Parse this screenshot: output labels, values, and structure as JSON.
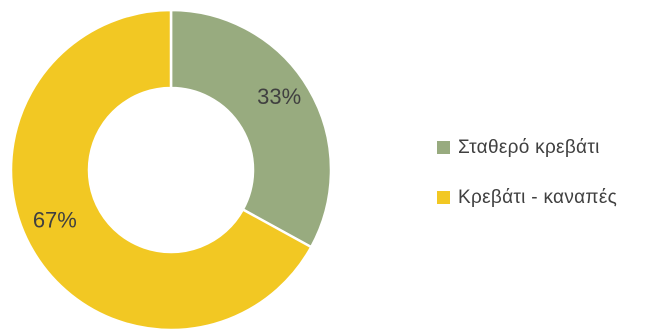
{
  "chart_data": {
    "type": "pie",
    "variant": "donut",
    "title": "",
    "categories": [
      "Σταθερό κρεβάτι",
      "Κρεβάτι - καναπές"
    ],
    "values": [
      33,
      67
    ],
    "labels": [
      "33%",
      "67%"
    ],
    "colors": [
      "#98AB7F",
      "#F2C823"
    ],
    "legend_position": "right"
  }
}
